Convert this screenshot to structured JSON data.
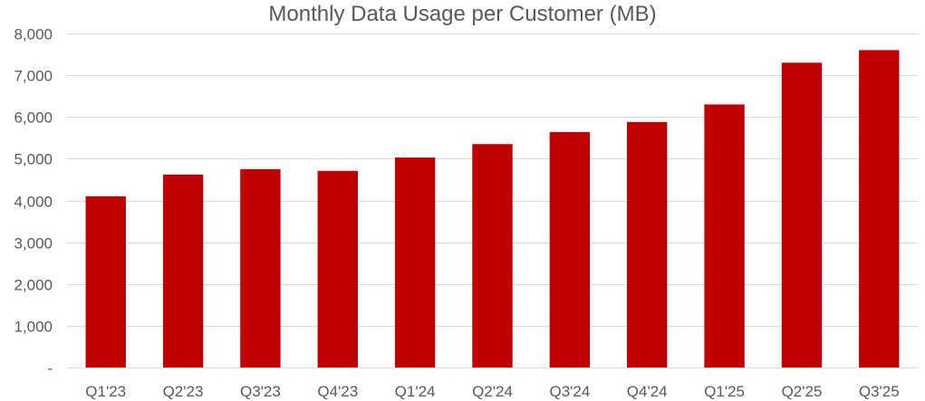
{
  "chart_data": {
    "type": "bar",
    "title": "Monthly Data Usage per Customer (MB)",
    "xlabel": "",
    "ylabel": "",
    "categories": [
      "Q1'23",
      "Q2'23",
      "Q3'23",
      "Q4'23",
      "Q1'24",
      "Q2'24",
      "Q3'24",
      "Q4'24",
      "Q1'25",
      "Q2'25",
      "Q3'25"
    ],
    "values": [
      4100,
      4620,
      4750,
      4710,
      5030,
      5350,
      5640,
      5880,
      6300,
      7300,
      7600
    ],
    "ylim": [
      0,
      8000
    ],
    "yticks": [
      0,
      1000,
      2000,
      3000,
      4000,
      5000,
      6000,
      7000,
      8000
    ],
    "ytick_labels": [
      "-",
      "1,000",
      "2,000",
      "3,000",
      "4,000",
      "5,000",
      "6,000",
      "7,000",
      "8,000"
    ],
    "grid": true,
    "legend": "none",
    "bar_color": "#C00000",
    "grid_color": "#D9D9D9",
    "text_color": "#595959"
  }
}
